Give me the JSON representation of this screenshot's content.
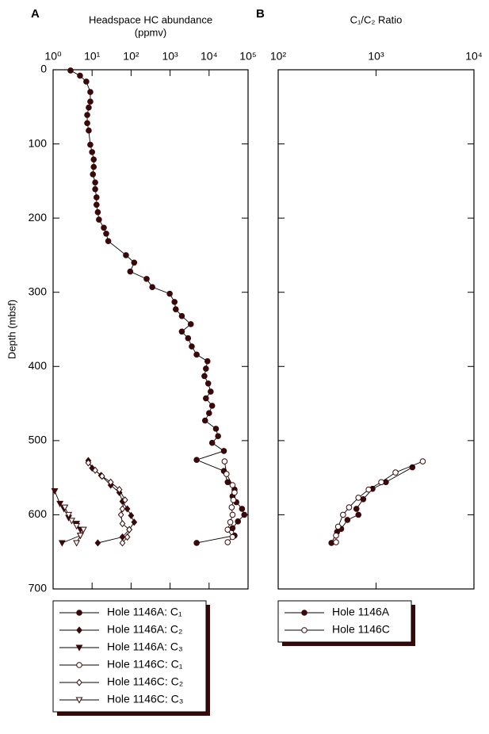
{
  "chart_data": [
    {
      "type": "line",
      "panel_label": "A",
      "xlabel": "Headspace HC abundance",
      "xlabel_unit": "(ppmv)",
      "ylabel": "Depth (mbsf)",
      "xscale": "log",
      "xlim": [
        1,
        100000
      ],
      "xticks": [
        {
          "value": 1,
          "label": "10⁰"
        },
        {
          "value": 10,
          "label": "10¹"
        },
        {
          "value": 100,
          "label": "10²"
        },
        {
          "value": 1000,
          "label": "10³"
        },
        {
          "value": 10000,
          "label": "10⁴"
        },
        {
          "value": 100000,
          "label": "10⁵"
        }
      ],
      "ylim": [
        0,
        700
      ],
      "yticks": [
        0,
        100,
        200,
        300,
        400,
        500,
        600,
        700
      ],
      "y_inverted": true,
      "legend": "bottom",
      "series": [
        {
          "name": "Hole 1146A: C₁",
          "color": "#3a0808",
          "marker": "circle",
          "filled": true,
          "x": [
            2.8,
            4.9,
            7.1,
            9,
            9,
            8.2,
            7.5,
            7.5,
            8.2,
            9,
            10,
            11,
            11,
            10.5,
            12,
            12,
            13,
            13,
            14,
            15,
            20,
            23,
            26,
            74,
            120,
            95,
            250,
            350,
            980,
            1300,
            1400,
            2000,
            3400,
            2000,
            2900,
            3600,
            4800,
            9100,
            8300,
            7600,
            9500,
            11000,
            8300,
            12000,
            10000,
            7900,
            15000,
            17000,
            12000,
            24000,
            4800,
            24000,
            30000,
            45000,
            40000,
            50000,
            70000,
            80000,
            55000,
            40000,
            45000,
            4800
          ],
          "y": [
            1,
            8,
            16,
            30,
            43,
            51,
            61,
            72,
            82,
            101,
            111,
            121,
            131,
            141,
            152,
            161,
            172,
            182,
            192,
            202,
            213,
            221,
            231,
            250,
            260,
            272,
            282,
            293,
            302,
            313,
            323,
            332,
            343,
            353,
            362,
            373,
            384,
            393,
            403,
            413,
            423,
            434,
            443,
            453,
            463,
            473,
            484,
            494,
            503,
            514,
            526,
            541,
            556,
            566,
            575,
            583,
            592,
            600,
            609,
            618,
            628,
            638
          ]
        },
        {
          "name": "Hole 1146A: C₂",
          "color": "#3a0808",
          "marker": "diamond",
          "filled": true,
          "x": [
            8,
            10,
            17,
            30,
            50,
            60,
            80,
            100,
            120,
            90,
            60,
            14
          ],
          "y": [
            527,
            537,
            547,
            560,
            570,
            582,
            592,
            601,
            610,
            620,
            630,
            638
          ]
        },
        {
          "name": "Hole 1146A: C₃",
          "color": "#3a0808",
          "marker": "triangle",
          "filled": true,
          "x": [
            1.1,
            1.5,
            1.9,
            2.5,
            4,
            5,
            5,
            1.7
          ],
          "y": [
            568,
            585,
            592,
            604,
            612,
            620,
            628,
            638
          ]
        },
        {
          "name": "Hole 1146C: C₁",
          "color": "#3a0808",
          "marker": "circle",
          "filled": false,
          "x": [
            25000,
            28000,
            40000,
            45000,
            42000,
            38000,
            40000,
            35000,
            30000,
            40000,
            30000
          ],
          "y": [
            528,
            545,
            560,
            570,
            580,
            590,
            600,
            610,
            620,
            630,
            637
          ]
        },
        {
          "name": "Hole 1146C: C₂",
          "color": "#3a0808",
          "marker": "diamond",
          "filled": false,
          "x": [
            8,
            12,
            18,
            30,
            50,
            70,
            60,
            55,
            60,
            90,
            80,
            60
          ],
          "y": [
            530,
            540,
            548,
            556,
            566,
            580,
            592,
            600,
            612,
            620,
            630,
            638
          ]
        },
        {
          "name": "Hole 1146C: C₃",
          "color": "#3a0808",
          "marker": "triangle",
          "filled": false,
          "x": [
            2,
            2.5,
            3,
            4,
            6,
            5,
            4
          ],
          "y": [
            590,
            600,
            608,
            615,
            620,
            628,
            638
          ]
        }
      ]
    },
    {
      "type": "line",
      "panel_label": "B",
      "xlabel": "C₁/C₂ Ratio",
      "xscale": "log",
      "xlim": [
        100,
        10000
      ],
      "xticks": [
        {
          "value": 100,
          "label": "10²"
        },
        {
          "value": 1000,
          "label": "10³"
        },
        {
          "value": 10000,
          "label": "10⁴"
        }
      ],
      "ylim": [
        0,
        700
      ],
      "yticks": [
        0,
        100,
        200,
        300,
        400,
        500,
        600,
        700
      ],
      "y_inverted": true,
      "legend": "bottom",
      "series": [
        {
          "name": "Hole 1146A",
          "color": "#3a0808",
          "marker": "circle",
          "filled": true,
          "x": [
            2350,
            1260,
            920,
            740,
            630,
            660,
            510,
            440,
            400,
            350
          ],
          "y": [
            536,
            556,
            565,
            579,
            592,
            600,
            607,
            619,
            623,
            638
          ]
        },
        {
          "name": "Hole 1146C",
          "color": "#3a0808",
          "marker": "circle",
          "filled": false,
          "x": [
            3000,
            1580,
            1130,
            840,
            660,
            530,
            460,
            410,
            390,
            390
          ],
          "y": [
            528,
            543,
            556,
            566,
            577,
            590,
            600,
            616,
            628,
            637
          ]
        }
      ]
    }
  ]
}
